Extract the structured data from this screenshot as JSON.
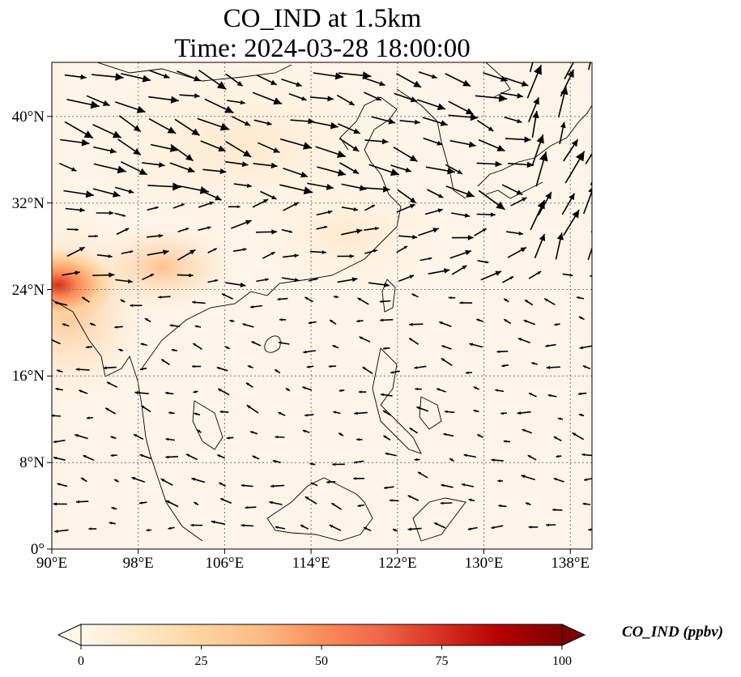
{
  "title": {
    "line1": "CO_IND at 1.5km",
    "line2": "Time: 2024-03-28 18:00:00"
  },
  "map": {
    "lon_range": [
      90,
      140
    ],
    "lat_range": [
      0,
      45
    ],
    "lon_ticks": [
      "90°E",
      "98°E",
      "106°E",
      "114°E",
      "122°E",
      "130°E",
      "138°E"
    ],
    "lat_ticks": [
      "0°",
      "8°N",
      "16°N",
      "24°N",
      "32°N",
      "40°N"
    ],
    "gridlines": true,
    "field": "CO_IND",
    "wind_vectors": true
  },
  "colorbar": {
    "label": "CO_IND (ppbv)",
    "ticks": [
      "0",
      "25",
      "50",
      "75",
      "100"
    ],
    "range": [
      0,
      100
    ],
    "colormap": "OrRd",
    "colors": [
      "#fff7ec",
      "#fee8c8",
      "#fdd49e",
      "#fdbb84",
      "#fc8d59",
      "#ef6548",
      "#d7301f",
      "#b30000",
      "#7f0000"
    ],
    "extend": "both"
  }
}
